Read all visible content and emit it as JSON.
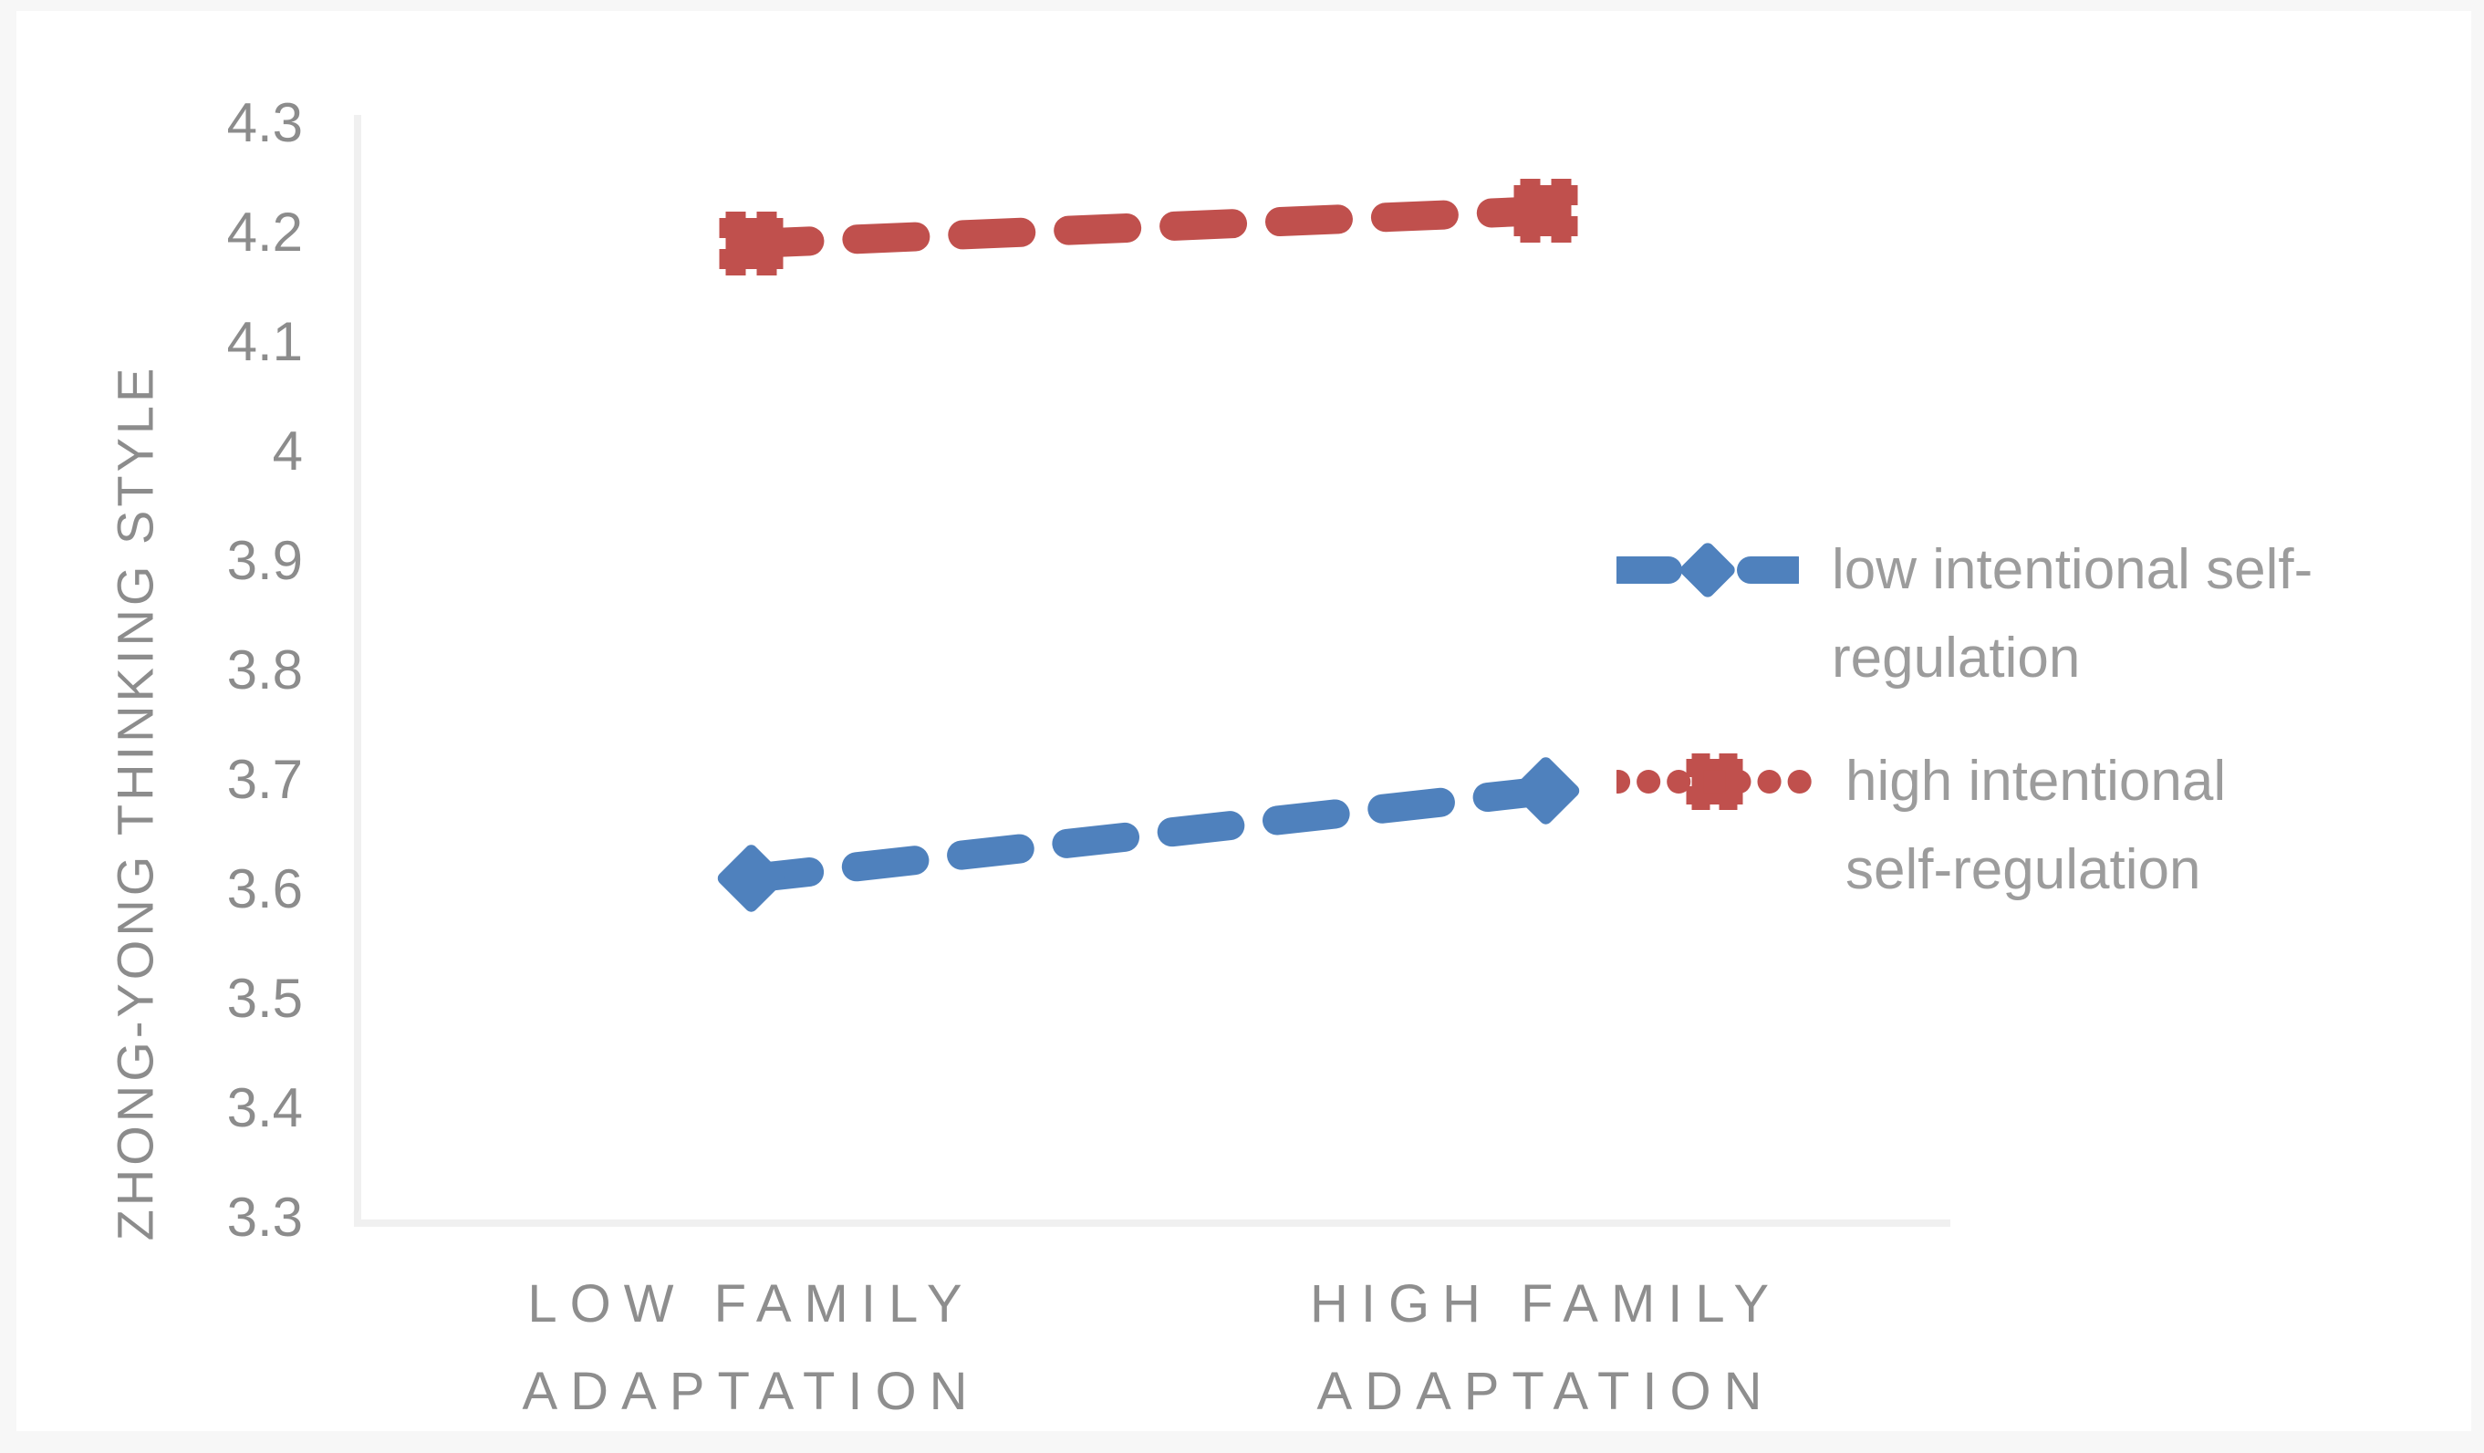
{
  "chart_data": {
    "type": "line",
    "title": "",
    "ylabel": "ZHONG-YONG THINKING STYLE",
    "xlabel": "",
    "categories": [
      [
        "LOW FAMILY",
        "ADAPTATION"
      ],
      [
        "HIGH FAMILY",
        "ADAPTATION"
      ]
    ],
    "ylim": [
      3.3,
      4.3
    ],
    "ytick_step": 0.1,
    "ytick_labels": [
      "4.3",
      "4.2",
      "4.1",
      "4",
      "3.9",
      "3.8",
      "3.7",
      "3.6",
      "3.5",
      "3.4",
      "3.3"
    ],
    "grid": "off",
    "legend_position": "right-center",
    "series": [
      {
        "name": "low intentional self-regulation",
        "legend_label_lines": [
          "low intentional self-",
          "regulation"
        ],
        "color": "#4F81BD",
        "marker": "diamond",
        "line_style": "dashed",
        "legend_line_style": "dashed",
        "values": [
          3.61,
          3.69
        ]
      },
      {
        "name": "high intentional self-regulation",
        "legend_label_lines": [
          "high intentional",
          "self-regulation"
        ],
        "color": "#C0504D",
        "marker": "hash",
        "line_style": "dashed",
        "legend_line_style": "dotted",
        "values": [
          4.19,
          4.22
        ]
      }
    ]
  },
  "colors": {
    "background": "#FFFFFF",
    "frame": "#F7F7F7",
    "axis_line": "#F0F0F0",
    "axis_text": "#8C8C8C",
    "legend_text": "#9C9C9C",
    "series_blue": "#4F81BD",
    "series_red": "#C0504D"
  }
}
